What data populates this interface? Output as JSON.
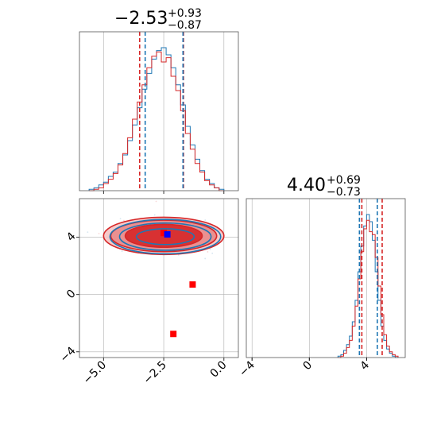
{
  "colors": {
    "blue": "#1f77b4",
    "red": "#d62728",
    "grid": "#b0b0b0",
    "marker_red": "#ff0000",
    "marker_blue": "#0000ff"
  },
  "chart_data": [
    {
      "type": "histogram",
      "panel": "top-left",
      "title": {
        "value": "−2.53",
        "plus": "+0.93",
        "minus": "−0.87"
      },
      "xlim": [
        -6.0,
        0.6
      ],
      "grid": true,
      "xticks": [
        -5.0,
        -2.5,
        0.0
      ],
      "dashed_lines": {
        "red": [
          -3.5,
          -1.68
        ],
        "blue": [
          -3.27,
          -1.7
        ]
      },
      "series": [
        {
          "name": "",
          "color": "#1f77b4",
          "x": [
            -5.5,
            -5.3,
            -5.1,
            -4.9,
            -4.7,
            -4.5,
            -4.3,
            -4.1,
            -3.9,
            -3.7,
            -3.5,
            -3.3,
            -3.1,
            -2.9,
            -2.7,
            -2.5,
            -2.3,
            -2.1,
            -1.9,
            -1.7,
            -1.5,
            -1.3,
            -1.1,
            -0.9,
            -0.7,
            -0.5,
            -0.3,
            -0.1
          ],
          "values": [
            0.01,
            0.02,
            0.04,
            0.06,
            0.1,
            0.13,
            0.19,
            0.25,
            0.35,
            0.46,
            0.58,
            0.71,
            0.82,
            0.92,
            0.98,
            1.0,
            0.95,
            0.86,
            0.74,
            0.6,
            0.45,
            0.32,
            0.22,
            0.14,
            0.08,
            0.05,
            0.02,
            0.01
          ]
        },
        {
          "name": "",
          "color": "#d62728",
          "x": [
            -5.5,
            -5.3,
            -5.1,
            -4.9,
            -4.7,
            -4.5,
            -4.3,
            -4.1,
            -3.9,
            -3.7,
            -3.5,
            -3.3,
            -3.1,
            -2.9,
            -2.7,
            -2.5,
            -2.3,
            -2.1,
            -1.9,
            -1.7,
            -1.5,
            -1.3,
            -1.1,
            -0.9,
            -0.7,
            -0.5,
            -0.3,
            -0.1
          ],
          "values": [
            0.0,
            0.01,
            0.02,
            0.05,
            0.08,
            0.12,
            0.18,
            0.26,
            0.37,
            0.5,
            0.62,
            0.74,
            0.86,
            0.94,
            0.97,
            0.9,
            0.93,
            0.8,
            0.7,
            0.56,
            0.4,
            0.29,
            0.19,
            0.13,
            0.07,
            0.04,
            0.02,
            0.0
          ]
        }
      ]
    },
    {
      "type": "contour",
      "panel": "bottom-left",
      "xlim": [
        -6.0,
        0.6
      ],
      "ylim": [
        -4.4,
        6.7
      ],
      "grid": true,
      "xticks": [
        -5.0,
        -2.5,
        0.0
      ],
      "yticks": [
        -4,
        0,
        4
      ],
      "center": [
        -2.5,
        4.1
      ],
      "red_contours": [
        {
          "rx": 2.5,
          "ry": 1.3
        },
        {
          "rx": 2.2,
          "ry": 1.1
        },
        {
          "rx": 1.6,
          "ry": 0.8
        }
      ],
      "blue_contours": [
        {
          "rx": 2.3,
          "ry": 1.2
        },
        {
          "rx": 1.9,
          "ry": 0.95
        },
        {
          "rx": 1.2,
          "ry": 0.55
        }
      ],
      "markers": [
        {
          "color": "#ff0000",
          "x": -1.3,
          "y": 0.7
        },
        {
          "color": "#ff0000",
          "x": -2.1,
          "y": -2.75
        },
        {
          "color": "#ff0000",
          "x": -2.5,
          "y": 4.3
        },
        {
          "color": "#0000ff",
          "x": -2.35,
          "y": 4.2
        }
      ]
    },
    {
      "type": "histogram",
      "panel": "bottom-right",
      "title": {
        "value": "4.40",
        "plus": "+0.69",
        "minus": "−0.73"
      },
      "xlim": [
        -4.4,
        6.7
      ],
      "grid": true,
      "xticks": [
        -4,
        0,
        4
      ],
      "dashed_lines": {
        "red": [
          3.67,
          5.09
        ],
        "blue": [
          3.5,
          4.75
        ]
      },
      "series": [
        {
          "name": "",
          "color": "#1f77b4",
          "x": [
            2.1,
            2.3,
            2.5,
            2.7,
            2.9,
            3.1,
            3.3,
            3.5,
            3.7,
            3.9,
            4.1,
            4.3,
            4.5,
            4.7,
            4.9,
            5.1,
            5.3,
            5.5,
            5.7,
            5.9,
            6.1
          ],
          "values": [
            0.01,
            0.02,
            0.05,
            0.09,
            0.15,
            0.25,
            0.4,
            0.6,
            0.78,
            0.92,
            1.0,
            0.95,
            0.82,
            0.6,
            0.4,
            0.22,
            0.12,
            0.06,
            0.03,
            0.01,
            0.0
          ]
        },
        {
          "name": "",
          "color": "#d62728",
          "x": [
            2.1,
            2.3,
            2.5,
            2.7,
            2.9,
            3.1,
            3.3,
            3.5,
            3.7,
            3.9,
            4.1,
            4.3,
            4.5,
            4.7,
            4.9,
            5.1,
            5.3,
            5.5,
            5.7,
            5.9,
            6.1
          ],
          "values": [
            0.0,
            0.01,
            0.03,
            0.07,
            0.12,
            0.22,
            0.36,
            0.55,
            0.74,
            0.9,
            0.96,
            0.88,
            0.86,
            0.7,
            0.5,
            0.3,
            0.16,
            0.08,
            0.04,
            0.02,
            0.01
          ]
        }
      ]
    }
  ]
}
